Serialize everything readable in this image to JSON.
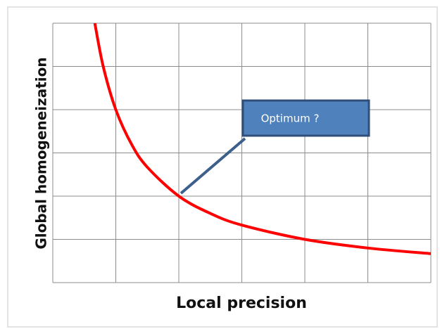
{
  "chart_data": {
    "type": "line",
    "x_label": "Local precision",
    "y_label": "Global homogeneization",
    "annotation": "Optimum ?",
    "x": [
      0.667,
      0.8,
      1,
      1.25,
      1.5,
      2,
      2.5,
      3,
      4,
      5,
      6
    ],
    "values": [
      6,
      5,
      4,
      3.2,
      2.67,
      2,
      1.6,
      1.33,
      1,
      0.8,
      0.67
    ],
    "color": "#ff0000",
    "xlim": [
      0,
      6
    ],
    "ylim": [
      0,
      6
    ],
    "xticks": [
      0,
      1,
      2,
      3,
      4,
      5,
      6
    ],
    "yticks": [
      0,
      1,
      2,
      3,
      4,
      5,
      6
    ],
    "grid": true
  }
}
